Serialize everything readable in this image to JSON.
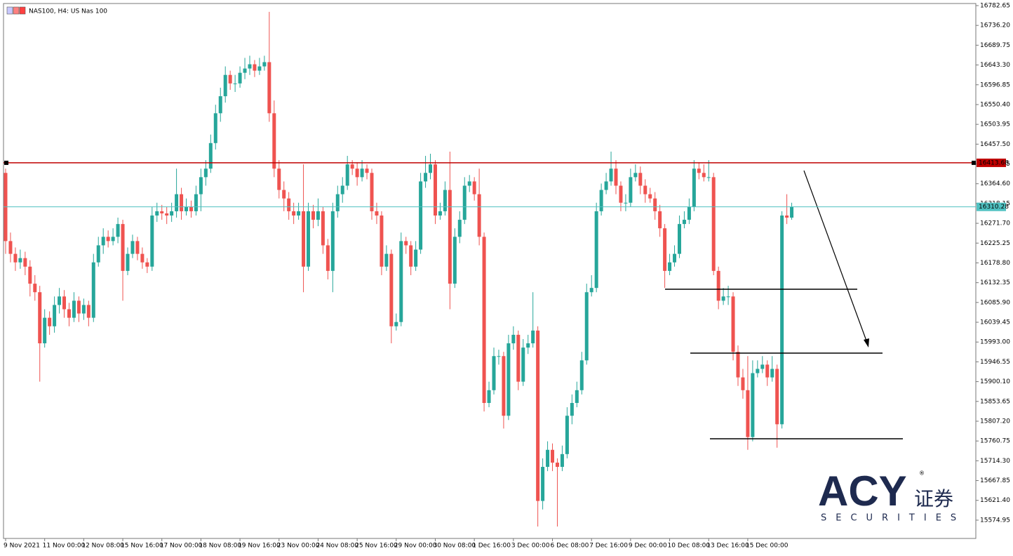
{
  "header": {
    "title": "NAS100, H4: US Nas 100"
  },
  "chart_data": {
    "type": "candlestick",
    "categories": [
      "9 Nov 2021",
      null,
      null,
      null,
      null,
      null,
      null,
      null,
      "11 Nov 00:00",
      null,
      null,
      null,
      null,
      null,
      null,
      null,
      "12 Nov 08:00",
      null,
      null,
      null,
      null,
      null,
      null,
      null,
      "15 Nov 16:00",
      null,
      null,
      null,
      null,
      null,
      null,
      null,
      "17 Nov 00:00",
      null,
      null,
      null,
      null,
      null,
      null,
      null,
      "18 Nov 08:00",
      null,
      null,
      null,
      null,
      null,
      null,
      null,
      "19 Nov 16:00",
      null,
      null,
      null,
      null,
      null,
      null,
      null,
      "23 Nov 00:00",
      null,
      null,
      null,
      null,
      null,
      null,
      null,
      "24 Nov 08:00",
      null,
      null,
      null,
      null,
      null,
      null,
      null,
      "25 Nov 16:00",
      null,
      null,
      null,
      null,
      null,
      null,
      null,
      "29 Nov 00:00",
      null,
      null,
      null,
      null,
      null,
      null,
      null,
      "30 Nov 08:00",
      null,
      null,
      null,
      null,
      null,
      null,
      null,
      "1 Dec 16:00",
      null,
      null,
      null,
      null,
      null,
      null,
      null,
      "3 Dec 00:00",
      null,
      null,
      null,
      null,
      null,
      null,
      null,
      "6 Dec 08:00",
      null,
      null,
      null,
      null,
      null,
      null,
      null,
      "7 Dec 16:00",
      null,
      null,
      null,
      null,
      null,
      null,
      null,
      "9 Dec 00:00",
      null,
      null,
      null,
      null,
      null,
      null,
      null,
      "10 Dec 08:00",
      null,
      null,
      null,
      null,
      null,
      null,
      null,
      "13 Dec 16:00",
      null,
      null,
      null,
      null,
      null,
      null,
      null,
      "15 Dec 00:00",
      null,
      null,
      null,
      null,
      null,
      null,
      null,
      null,
      null
    ],
    "open": [
      16390,
      16230,
      16200,
      16180,
      16190,
      16170,
      16130,
      16110,
      15990,
      16050,
      16030,
      16080,
      16100,
      16070,
      16050,
      16090,
      16060,
      16080,
      16050,
      16180,
      16220,
      16240,
      16230,
      16240,
      16270,
      16160,
      16200,
      16230,
      16200,
      16180,
      16170,
      16290,
      16300,
      16295,
      16290,
      16300,
      16340,
      16300,
      16310,
      16300,
      16340,
      16380,
      16400,
      16460,
      16530,
      16570,
      16620,
      16600,
      16600,
      16625,
      16635,
      16645,
      16630,
      16640,
      16650,
      16530,
      16400,
      16350,
      16330,
      16300,
      16290,
      16300,
      16170,
      16300,
      16280,
      16300,
      16220,
      16160,
      16300,
      16340,
      16360,
      16410,
      16400,
      16380,
      16400,
      16390,
      16300,
      16290,
      16170,
      16200,
      16030,
      16040,
      16230,
      16220,
      16170,
      16210,
      16370,
      16390,
      16410,
      16290,
      16300,
      16350,
      16130,
      16240,
      16280,
      16360,
      16370,
      16340,
      16240,
      15850,
      15880,
      15960,
      15960,
      15820,
      15990,
      16010,
      15900,
      15980,
      15990,
      16020,
      15620,
      15700,
      15740,
      15710,
      15700,
      15730,
      15820,
      15850,
      15880,
      15950,
      16110,
      16120,
      16300,
      16350,
      16370,
      16400,
      16360,
      16320,
      16320,
      16380,
      16390,
      16360,
      16340,
      16330,
      16300,
      16260,
      16160,
      16180,
      16200,
      16270,
      16280,
      16310,
      16400,
      16390,
      16380,
      16380,
      16160,
      16090,
      16100,
      16100,
      15970,
      15910,
      15880,
      15770,
      15920,
      15930,
      15940,
      15910,
      15930,
      15800,
      16290,
      16285
    ],
    "high": [
      16400,
      16250,
      16215,
      16210,
      16205,
      16185,
      16150,
      16125,
      16070,
      16065,
      16100,
      16120,
      16115,
      16085,
      16110,
      16100,
      16095,
      16090,
      16200,
      16240,
      16260,
      16255,
      16260,
      16285,
      16280,
      16215,
      16245,
      16240,
      16215,
      16190,
      16310,
      16320,
      16315,
      16310,
      16320,
      16400,
      16355,
      16330,
      16325,
      16360,
      16400,
      16420,
      16480,
      16550,
      16590,
      16640,
      16630,
      16620,
      16640,
      16660,
      16665,
      16655,
      16660,
      16665,
      16768,
      16560,
      16420,
      16370,
      16345,
      16320,
      16320,
      16410,
      16320,
      16315,
      16330,
      16310,
      16235,
      16320,
      16360,
      16380,
      16430,
      16420,
      16415,
      16420,
      16410,
      16400,
      16320,
      16300,
      16220,
      16210,
      16060,
      16250,
      16240,
      16230,
      16230,
      16390,
      16430,
      16435,
      16420,
      16320,
      16370,
      16440,
      16260,
      16300,
      16380,
      16385,
      16380,
      16400,
      16250,
      15900,
      15980,
      15975,
      15970,
      16010,
      16030,
      16020,
      16000,
      16010,
      16110,
      16030,
      15720,
      15760,
      15755,
      15720,
      15750,
      15840,
      15870,
      15900,
      15970,
      16130,
      16150,
      16320,
      16365,
      16390,
      16440,
      16420,
      16370,
      16340,
      16400,
      16410,
      16405,
      16375,
      16355,
      16345,
      16315,
      16270,
      16200,
      16220,
      16290,
      16300,
      16330,
      16420,
      16415,
      16410,
      16420,
      16390,
      16170,
      16120,
      16125,
      16110,
      15985,
      15930,
      15960,
      15950,
      15950,
      15960,
      15950,
      15960,
      15940,
      16300,
      16340,
      16320
    ],
    "low": [
      16200,
      16180,
      16160,
      16165,
      16150,
      16100,
      16090,
      15900,
      15980,
      16010,
      16015,
      16060,
      16050,
      16030,
      16040,
      16040,
      16045,
      16030,
      16040,
      16170,
      16200,
      16215,
      16220,
      16225,
      16090,
      16150,
      16190,
      16185,
      16165,
      16155,
      16160,
      16275,
      16280,
      16270,
      16275,
      16285,
      16280,
      16290,
      16285,
      16290,
      16300,
      16360,
      16390,
      16445,
      16510,
      16555,
      16585,
      16580,
      16590,
      16610,
      16620,
      16615,
      16620,
      16630,
      16510,
      16380,
      16330,
      16300,
      16280,
      16270,
      16280,
      16110,
      16160,
      16260,
      16265,
      16200,
      16140,
      16110,
      16285,
      16320,
      16350,
      16385,
      16360,
      16370,
      16375,
      16280,
      16270,
      16150,
      16160,
      15990,
      16020,
      16030,
      16200,
      16150,
      16160,
      16200,
      16355,
      16375,
      16270,
      16280,
      16290,
      16070,
      16120,
      16225,
      16270,
      16345,
      16325,
      16220,
      15830,
      15840,
      15870,
      15940,
      15790,
      15810,
      15975,
      15880,
      15890,
      15965,
      15980,
      15560,
      15600,
      15690,
      15690,
      15560,
      15690,
      15720,
      15800,
      15840,
      15870,
      15940,
      16100,
      16110,
      16290,
      16340,
      16360,
      16340,
      16300,
      16300,
      16310,
      16370,
      16340,
      16320,
      16320,
      16280,
      16240,
      16120,
      16150,
      16170,
      16190,
      16260,
      16270,
      16300,
      16375,
      16370,
      16370,
      16150,
      16070,
      16080,
      16080,
      15950,
      15890,
      15860,
      15740,
      15760,
      15910,
      15920,
      15890,
      15900,
      15745,
      15790,
      16270,
      16280
    ],
    "close": [
      16230,
      16200,
      16180,
      16190,
      16170,
      16130,
      16110,
      15990,
      16050,
      16030,
      16080,
      16100,
      16070,
      16050,
      16090,
      16060,
      16080,
      16050,
      16180,
      16220,
      16240,
      16230,
      16240,
      16270,
      16160,
      16200,
      16230,
      16200,
      16180,
      16170,
      16290,
      16300,
      16295,
      16290,
      16300,
      16340,
      16300,
      16310,
      16300,
      16340,
      16380,
      16400,
      16460,
      16530,
      16570,
      16620,
      16600,
      16600,
      16625,
      16635,
      16645,
      16630,
      16640,
      16650,
      16530,
      16400,
      16350,
      16330,
      16300,
      16290,
      16300,
      16170,
      16300,
      16280,
      16300,
      16220,
      16160,
      16300,
      16340,
      16360,
      16410,
      16400,
      16380,
      16400,
      16390,
      16300,
      16290,
      16170,
      16200,
      16030,
      16040,
      16230,
      16220,
      16170,
      16210,
      16370,
      16390,
      16410,
      16290,
      16300,
      16350,
      16130,
      16240,
      16280,
      16360,
      16370,
      16340,
      16240,
      15850,
      15880,
      15960,
      15960,
      15820,
      15990,
      16010,
      15900,
      15980,
      15990,
      16020,
      15620,
      15700,
      15740,
      15710,
      15700,
      15730,
      15820,
      15850,
      15880,
      15950,
      16110,
      16120,
      16300,
      16350,
      16370,
      16400,
      16360,
      16320,
      16320,
      16380,
      16390,
      16360,
      16340,
      16330,
      16300,
      16260,
      16160,
      16180,
      16200,
      16270,
      16280,
      16310,
      16400,
      16390,
      16380,
      16380,
      16160,
      16090,
      16100,
      16100,
      15970,
      15910,
      15880,
      15770,
      15920,
      15930,
      15940,
      15910,
      15930,
      15800,
      16290,
      16285,
      16310
    ],
    "up_color": "#26a69a",
    "down_color": "#ef5350",
    "ylim": [
      15532,
      16787.6
    ],
    "yticks": [
      16782.65,
      {
        "value": 16736.2,
        "label": "16736.20"
      },
      16689.75,
      {
        "value": 16643.3,
        "label": "16643.30"
      },
      16596.85,
      {
        "value": 16550.4,
        "label": "16550.40"
      },
      16503.95,
      {
        "value": 16457.5,
        "label": "16457.50"
      },
      16411.05,
      {
        "value": 16364.6,
        "label": "16364.60"
      },
      16318.15,
      {
        "value": 16271.7,
        "label": "16271.70"
      },
      16225.25,
      {
        "value": 16178.8,
        "label": "16178.80"
      },
      16132.35,
      {
        "value": 16085.9,
        "label": "16085.90"
      },
      16039.45,
      {
        "value": 15993,
        "label": "15993.00"
      },
      15946.55,
      {
        "value": 15900.1,
        "label": "15900.10"
      },
      15853.65,
      {
        "value": 15807.2,
        "label": "15807.20"
      },
      15760.75,
      {
        "value": 15714.3,
        "label": "15714.30"
      },
      15667.85,
      {
        "value": 15621.4,
        "label": "15621.40"
      },
      15574.95
    ],
    "price_lines": [
      {
        "value": 16413.68,
        "color": "#c00000"
      },
      {
        "value": 16310.28,
        "color": "#4fc1c1"
      }
    ],
    "levels": [
      16117,
      15967,
      15766
    ]
  },
  "logo": {
    "brand": "ACY",
    "chinese": "证券",
    "tagline": "SECURITIES",
    "mark": "®"
  }
}
